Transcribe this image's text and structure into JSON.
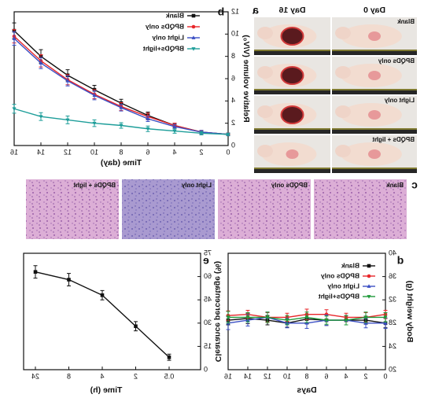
{
  "photos": {
    "label": "a",
    "columns": [
      "Day 0",
      "Day 16"
    ],
    "rows": [
      "Blank",
      "BPQDs only",
      "Light only",
      "BPQDs + light"
    ]
  },
  "histology": {
    "label": "c",
    "panels": [
      "Blank",
      "BPQDs only",
      "Light only",
      "BPQDs + light"
    ]
  },
  "chart_data": [
    {
      "type": "line",
      "panel_label": "b",
      "x_label": "Time (day)",
      "y_label": "Relative volume (V/V₀)",
      "x": [
        0,
        2,
        4,
        6,
        8,
        10,
        12,
        14,
        16
      ],
      "xlim": [
        0,
        16
      ],
      "xticks": [
        0,
        2,
        4,
        6,
        8,
        10,
        12,
        14,
        16
      ],
      "ylim": [
        0,
        12
      ],
      "yticks": [
        0,
        2,
        4,
        6,
        8,
        10,
        12
      ],
      "legend": "upper left",
      "series": [
        {
          "name": "Blank",
          "color": "#111111",
          "marker": "square",
          "values": [
            1,
            1.2,
            1.8,
            2.7,
            3.8,
            5.0,
            6.3,
            8.0,
            10.3
          ],
          "errors": [
            0.1,
            0.15,
            0.2,
            0.3,
            0.35,
            0.4,
            0.5,
            0.6,
            0.7
          ]
        },
        {
          "name": "BPQDs only",
          "color": "#e8262a",
          "marker": "circle",
          "values": [
            1,
            1.2,
            1.8,
            2.6,
            3.5,
            4.6,
            5.9,
            7.6,
            9.8
          ],
          "errors": [
            0.1,
            0.15,
            0.2,
            0.3,
            0.35,
            0.4,
            0.45,
            0.55,
            0.6
          ]
        },
        {
          "name": "Light only",
          "color": "#3b4fc4",
          "marker": "triangle",
          "values": [
            1,
            1.2,
            1.7,
            2.4,
            3.4,
            4.5,
            5.8,
            7.4,
            9.6
          ],
          "errors": [
            0.1,
            0.15,
            0.2,
            0.25,
            0.3,
            0.4,
            0.45,
            0.5,
            0.6
          ]
        },
        {
          "name": "BPQDs+light",
          "color": "#1e9e9a",
          "marker": "triangle-down",
          "values": [
            1,
            1.1,
            1.3,
            1.5,
            1.8,
            2.0,
            2.3,
            2.6,
            3.3
          ],
          "errors": [
            0.1,
            0.15,
            0.2,
            0.25,
            0.25,
            0.3,
            0.35,
            0.35,
            0.4
          ]
        }
      ]
    },
    {
      "type": "line",
      "panel_label": "d",
      "x_label": "Days",
      "y_label": "Body weight (g)",
      "x": [
        0,
        2,
        4,
        6,
        8,
        10,
        12,
        14,
        16
      ],
      "xlim": [
        0,
        16
      ],
      "xticks": [
        0,
        2,
        4,
        6,
        8,
        10,
        12,
        14,
        16
      ],
      "ylim": [
        20,
        40
      ],
      "yticks": [
        20,
        24,
        28,
        32,
        36,
        40
      ],
      "legend": "upper left",
      "series": [
        {
          "name": "Blank",
          "color": "#111111",
          "marker": "square",
          "values": [
            28,
            28.5,
            28.5,
            28.5,
            28.7,
            28,
            28.5,
            28.8,
            28.5
          ],
          "errors": [
            0.8,
            0.7,
            0.8,
            0.9,
            0.8,
            0.7,
            0.8,
            0.9,
            0.8
          ]
        },
        {
          "name": "BPQDs only",
          "color": "#e8262a",
          "marker": "circle",
          "values": [
            29.5,
            29,
            29,
            29.5,
            29.5,
            29,
            29,
            29.5,
            29.3
          ],
          "errors": [
            0.7,
            0.8,
            0.7,
            0.8,
            0.9,
            0.7,
            0.8,
            0.7,
            0.8
          ]
        },
        {
          "name": "Light only",
          "color": "#3b4fc4",
          "marker": "triangle",
          "values": [
            28,
            28,
            28.5,
            28.5,
            28,
            28,
            29,
            28.5,
            28
          ],
          "errors": [
            0.9,
            0.8,
            0.8,
            0.9,
            0.9,
            0.8,
            0.9,
            1.0,
            1.1
          ]
        },
        {
          "name": "BPQDs+light",
          "color": "#1f9a3a",
          "marker": "triangle-down",
          "values": [
            29,
            29,
            28.5,
            28.5,
            29,
            28.5,
            29,
            29,
            29
          ],
          "errors": [
            0.8,
            0.9,
            0.8,
            0.7,
            0.9,
            0.8,
            0.9,
            0.8,
            1.0
          ]
        }
      ]
    },
    {
      "type": "line",
      "panel_label": "e",
      "x_label": "Time (h)",
      "y_label": "Clearance percentage (%)",
      "categories": [
        "0.5",
        "2",
        "4",
        "8",
        "24"
      ],
      "ylim": [
        0,
        75
      ],
      "yticks": [
        0,
        15,
        30,
        45,
        60,
        75
      ],
      "series": [
        {
          "color": "#111111",
          "marker": "square",
          "values": [
            8,
            28,
            48,
            58,
            63
          ],
          "errors": [
            2,
            3,
            3,
            4,
            4
          ]
        }
      ]
    }
  ]
}
